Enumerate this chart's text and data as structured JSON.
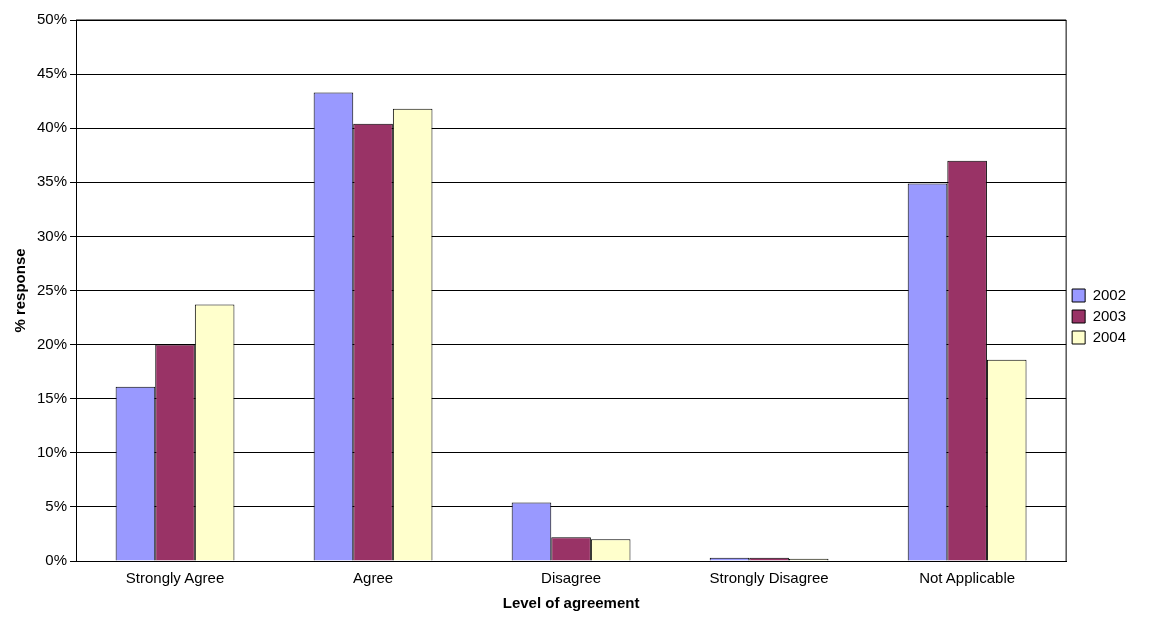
{
  "chart_data": {
    "type": "bar",
    "xlabel": "Level of agreement",
    "ylabel": "% response",
    "categories": [
      "Strongly Agree",
      "Agree",
      "Disagree",
      "Strongly Disagree",
      "Not Applicable"
    ],
    "series": [
      {
        "name": "2002",
        "color": "#9999ff",
        "values": [
          16.1,
          43.3,
          5.4,
          0.3,
          34.9
        ]
      },
      {
        "name": "2003",
        "color": "#993366",
        "values": [
          20.0,
          40.4,
          2.2,
          0.3,
          37.0
        ]
      },
      {
        "name": "2004",
        "color": "#ffffcc",
        "values": [
          23.7,
          41.8,
          2.0,
          0.2,
          18.6
        ]
      }
    ],
    "ylim": [
      0,
      50
    ],
    "yticks": [
      {
        "value": 0,
        "label": "0%"
      },
      {
        "value": 5,
        "label": "5%"
      },
      {
        "value": 10,
        "label": "10%"
      },
      {
        "value": 15,
        "label": "15%"
      },
      {
        "value": 20,
        "label": "20%"
      },
      {
        "value": 25,
        "label": "25%"
      },
      {
        "value": 30,
        "label": "30%"
      },
      {
        "value": 35,
        "label": "35%"
      },
      {
        "value": 40,
        "label": "40%"
      },
      {
        "value": 45,
        "label": "45%"
      },
      {
        "value": 50,
        "label": "50%"
      }
    ],
    "grid": "y",
    "legend": "right"
  }
}
